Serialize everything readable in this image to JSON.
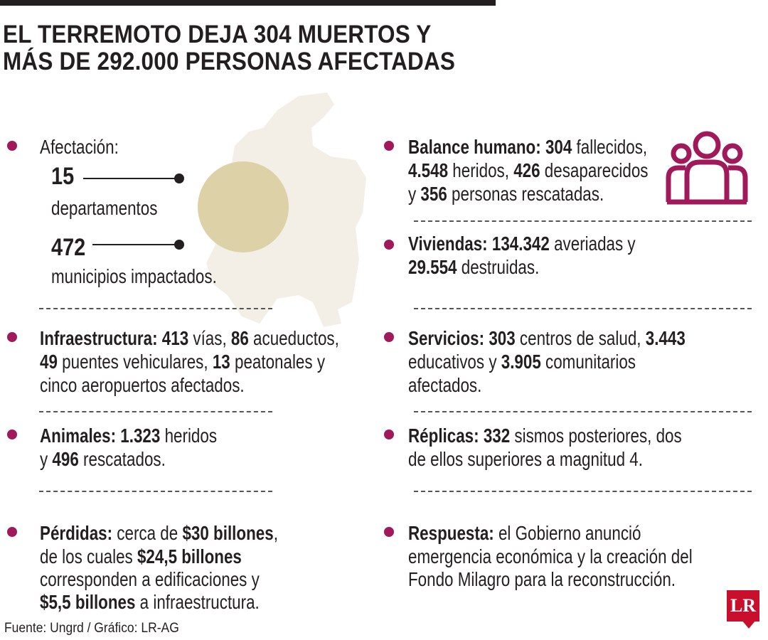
{
  "headline": {
    "line1": "EL TERREMOTO DEJA 304 MUERTOS Y",
    "line2": "MÁS DE 292.000 PERSONAS AFECTADAS"
  },
  "afectacion": {
    "label": "Afectación:",
    "departamentos_value": "15",
    "departamentos_label": "departamentos",
    "municipios_value": "472",
    "municipios_label": "municipios impactados."
  },
  "infraestructura": {
    "label": "Infraestructura:",
    "l1_v1": "413",
    "l1_t1": " vías, ",
    "l1_v2": "86",
    "l1_t2": " acueductos,",
    "l2_v1": "49",
    "l2_t1": " puentes vehiculares, ",
    "l2_v2": "13",
    "l2_t2": " peatonales y",
    "l3": "cinco aeropuertos afectados."
  },
  "animales": {
    "label": "Animales:",
    "v1": "1.323",
    "t1": " heridos",
    "l2_t0": "y ",
    "v2": "496",
    "t2": " rescatados."
  },
  "perdidas": {
    "label": "Pérdidas:",
    "t1": " cerca de ",
    "v1": "$30 billones",
    "t1b": ",",
    "l2_t0": "de los cuales ",
    "v2": "$24,5 billones",
    "l3": "corresponden a edificaciones y",
    "v3": "$5,5 billones",
    "t3": " a infraestructura."
  },
  "balance": {
    "label": "Balance humano:",
    "v1": "304",
    "t1": " fallecidos,",
    "v2": "4.548",
    "t2": " heridos, ",
    "v3": "426",
    "t3": " desaparecidos",
    "t4a": "y ",
    "v4": "356",
    "t4": " personas rescatadas."
  },
  "viviendas": {
    "label": "Viviendas:",
    "v1": "134.342",
    "t1": " averiadas y",
    "v2": "29.554",
    "t2": " destruidas."
  },
  "servicios": {
    "label": "Servicios:",
    "v1": "303",
    "t1": " centros de salud, ",
    "v2": "3.443",
    "t2a": "educativos y ",
    "v3": "3.905",
    "t2": " comunitarios",
    "l3": "afectados."
  },
  "replicas": {
    "label": "Réplicas:",
    "v1": "332",
    "t1": " sismos posteriores, dos",
    "l2": "de ellos superiores a magnitud 4."
  },
  "respuesta": {
    "label": "Respuesta:",
    "t1": " el Gobierno anunció",
    "l2": "emergencia económica y la creación del",
    "l3": "Fondo Milagro para la reconstrucción."
  },
  "source": "Fuente: Ungrd / Gráfico: LR-AG",
  "logo_text": "LR",
  "colors": {
    "accent": "#a0195b",
    "map_fill": "#f3efe7",
    "circle": "#ddd1a8",
    "logo": "#c8102e"
  },
  "icons": {
    "people": "people-group-icon",
    "map": "colombia-map"
  }
}
